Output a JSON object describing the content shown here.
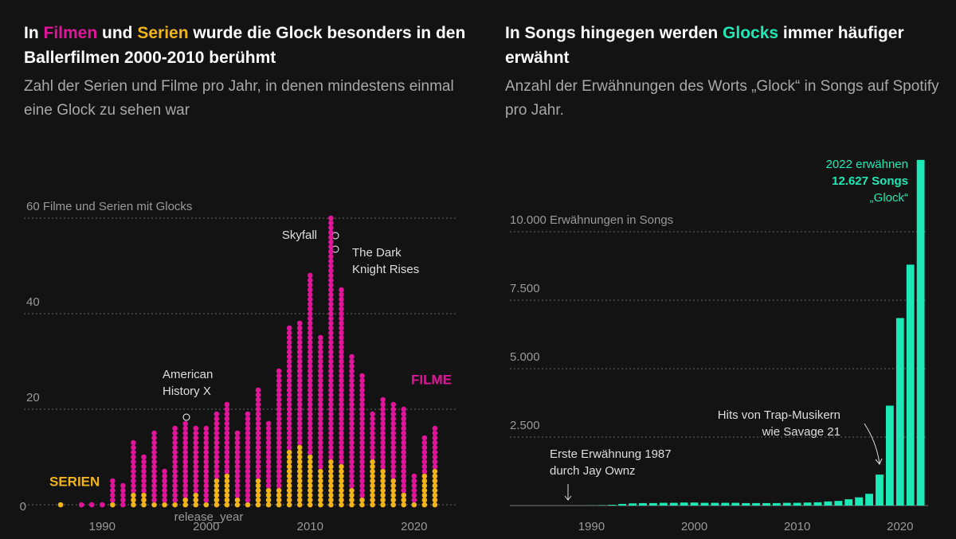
{
  "chart_data": [
    {
      "type": "dotplot",
      "title_parts": [
        "In ",
        "Filmen",
        " und ",
        "Serien",
        " wurde die Glock besonders in den Ballerfilmen 2000-2010 berühmt"
      ],
      "subtitle": "Zahl der Serien und Filme pro Jahr, in denen mindestens einmal eine Glock zu sehen war",
      "xlabel": "release_year",
      "x": [
        1986,
        1988,
        1989,
        1990,
        1991,
        1992,
        1993,
        1994,
        1995,
        1996,
        1997,
        1998,
        1999,
        2000,
        2001,
        2002,
        2003,
        2004,
        2005,
        2006,
        2007,
        2008,
        2009,
        2010,
        2011,
        2012,
        2013,
        2014,
        2015,
        2016,
        2017,
        2018,
        2019,
        2020,
        2021,
        2022
      ],
      "series": [
        {
          "name": "SERIEN",
          "color": "#f2b418",
          "values": [
            1,
            0,
            0,
            0,
            1,
            0,
            3,
            3,
            1,
            1,
            1,
            2,
            3,
            1,
            6,
            7,
            2,
            1,
            6,
            4,
            4,
            12,
            13,
            11,
            8,
            10,
            9,
            4,
            2,
            10,
            8,
            6,
            3,
            1,
            7,
            8
          ]
        },
        {
          "name": "FILME",
          "color": "#e0159a",
          "values": [
            0,
            1,
            1,
            1,
            5,
            5,
            11,
            8,
            15,
            7,
            16,
            16,
            14,
            16,
            14,
            15,
            14,
            19,
            19,
            14,
            25,
            26,
            26,
            38,
            28,
            51,
            37,
            28,
            26,
            10,
            15,
            16,
            18,
            6,
            8,
            9
          ]
        }
      ],
      "annotations": [
        [
          "American",
          "History X"
        ],
        [
          "Skyfall"
        ],
        [
          "The Dark",
          "Knight Rises"
        ]
      ],
      "xlim": [
        1984,
        2024
      ],
      "xticks": [
        1990,
        2000,
        2010,
        2020
      ],
      "ylim": [
        0,
        65
      ],
      "yticks": [
        0,
        20,
        40,
        {
          "value": 60,
          "label": "60 Filme und Serien mit Glocks"
        }
      ],
      "grid": true
    },
    {
      "type": "bar",
      "title_parts": [
        "In Songs hingegen werden ",
        "Glocks",
        " immer häufiger erwähnt"
      ],
      "subtitle": "Anzahl der Erwähnungen des Worts „Glock“ in Songs auf Spotify pro Jahr.",
      "x": [
        1987,
        1988,
        1989,
        1990,
        1991,
        1992,
        1993,
        1994,
        1995,
        1996,
        1997,
        1998,
        1999,
        2000,
        2001,
        2002,
        2003,
        2004,
        2005,
        2006,
        2007,
        2008,
        2009,
        2010,
        2011,
        2012,
        2013,
        2014,
        2015,
        2016,
        2017,
        2018,
        2019,
        2020,
        2021,
        2022
      ],
      "color": "#1de9b6",
      "values": [
        1,
        2,
        3,
        5,
        10,
        30,
        60,
        80,
        90,
        90,
        100,
        100,
        110,
        110,
        100,
        100,
        100,
        100,
        90,
        90,
        90,
        90,
        100,
        100,
        110,
        120,
        150,
        170,
        230,
        300,
        430,
        1130,
        3650,
        6850,
        8800,
        12627
      ],
      "annotations": [
        [
          "2022 erwähnen",
          "12.627 Songs",
          "„Glock“"
        ],
        [
          "Hits von Trap-Musikern",
          "wie Savage 21"
        ],
        [
          "Erste Erwähnung 1987",
          "durch Jay Ownz"
        ]
      ],
      "xlim": [
        1983,
        2023.5
      ],
      "xticks": [
        1990,
        2000,
        2010,
        2020
      ],
      "ylim": [
        0,
        13000
      ],
      "yticks": [
        {
          "value": 2500,
          "label": "2.500"
        },
        {
          "value": 5000,
          "label": "5.000"
        },
        {
          "value": 7500,
          "label": "7.500"
        },
        {
          "value": 10000,
          "label": "10.000 Erwähnungen in Songs"
        }
      ],
      "grid": true
    }
  ]
}
